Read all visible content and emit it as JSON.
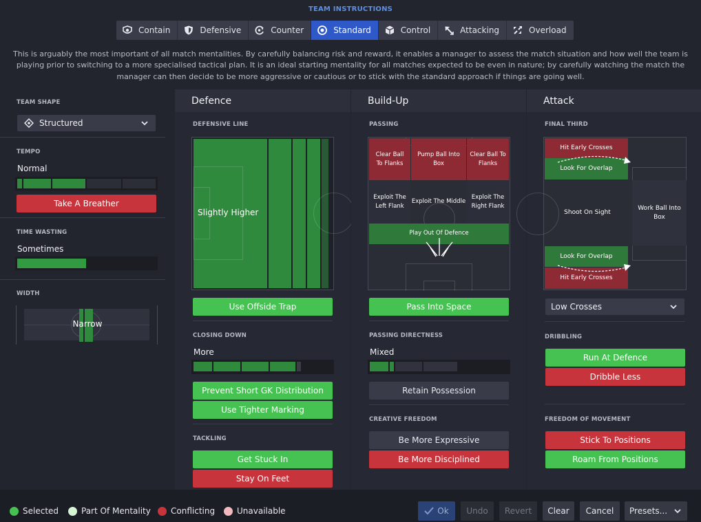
{
  "header": {
    "title": "TEAM INSTRUCTIONS"
  },
  "tabs": [
    {
      "label": "Contain",
      "icon": "contain-icon"
    },
    {
      "label": "Defensive",
      "icon": "shield-icon"
    },
    {
      "label": "Counter",
      "icon": "counter-icon"
    },
    {
      "label": "Standard",
      "icon": "standard-icon",
      "active": true
    },
    {
      "label": "Control",
      "icon": "cube-icon"
    },
    {
      "label": "Attacking",
      "icon": "arrow-icon"
    },
    {
      "label": "Overload",
      "icon": "overload-icon"
    }
  ],
  "description": "This is arguably the most important of all match mentalities. By carefully balancing risk and reward, it enables a manager to assess the match situation and how well the team is playing prior to switching to a more specialised tactical plan. It is an ideal starting mentality for all matches expected to be even in nature; by carefully watching the match the manager can then decide to be more aggressive or cautious or to stick with the standard approach if things are going well.",
  "left": {
    "team_shape_label": "TEAM SHAPE",
    "team_shape_value": "Structured",
    "tempo_label": "TEMPO",
    "tempo_value": "Normal",
    "tempo_level": 0.5,
    "breather_button": "Take A Breather",
    "time_wasting_label": "TIME WASTING",
    "time_wasting_value": "Sometimes",
    "time_wasting_level": 0.5,
    "width_label": "WIDTH",
    "width_value": "Narrow"
  },
  "defence": {
    "title": "Defence",
    "line_label": "DEFENSIVE LINE",
    "line_value": "Slightly Higher",
    "offside_button": "Use Offside Trap",
    "closing_label": "CLOSING DOWN",
    "closing_value": "More",
    "closing_level": 0.75,
    "prevent_gk_button": "Prevent Short GK Distribution",
    "marking_button": "Use Tighter Marking",
    "tackling_label": "TACKLING",
    "stuck_in_button": "Get Stuck In",
    "stay_feet_button": "Stay On Feet"
  },
  "buildup": {
    "title": "Build-Up",
    "passing_label": "PASSING",
    "clear_flanks_left": "Clear Ball To Flanks",
    "pump_box": "Pump Ball Into Box",
    "clear_flanks_right": "Clear Ball To Flanks",
    "exploit_left": "Exploit The Left Flank",
    "exploit_middle": "Exploit The Middle",
    "exploit_right": "Exploit The Right Flank",
    "play_out": "Play Out Of Defence",
    "space_button": "Pass Into Space",
    "directness_label": "PASSING DIRECTNESS",
    "directness_value": "Mixed",
    "directness_level": 0.2,
    "retain_button": "Retain Possession",
    "creative_label": "CREATIVE FREEDOM",
    "expressive_button": "Be More Expressive",
    "disciplined_button": "Be More Disciplined"
  },
  "attack": {
    "title": "Attack",
    "final_third_label": "FINAL THIRD",
    "hit_crosses_top": "Hit Early Crosses",
    "overlap_top": "Look For Overlap",
    "shoot_on_sight": "Shoot On Sight",
    "work_ball": "Work Ball Into Box",
    "overlap_bottom": "Look For Overlap",
    "hit_crosses_bottom": "Hit Early Crosses",
    "crosses_select": "Low Crosses",
    "dribbling_label": "DRIBBLING",
    "run_button": "Run At Defence",
    "dribble_less_button": "Dribble Less",
    "movement_label": "FREEDOM OF MOVEMENT",
    "stick_button": "Stick To Positions",
    "roam_button": "Roam From Positions"
  },
  "legend": {
    "selected": "Selected",
    "part": "Part Of Mentality",
    "conflicting": "Conflicting",
    "unavailable": "Unavailable"
  },
  "footer": {
    "ok": "Ok",
    "undo": "Undo",
    "revert": "Revert",
    "clear": "Clear",
    "cancel": "Cancel",
    "presets": "Presets..."
  },
  "colors": {
    "selected": "#45c251",
    "part": "#d6f5d3",
    "conflicting": "#c8343c",
    "unavailable": "#f2b8bd",
    "active_tab": "#2f59c9"
  }
}
